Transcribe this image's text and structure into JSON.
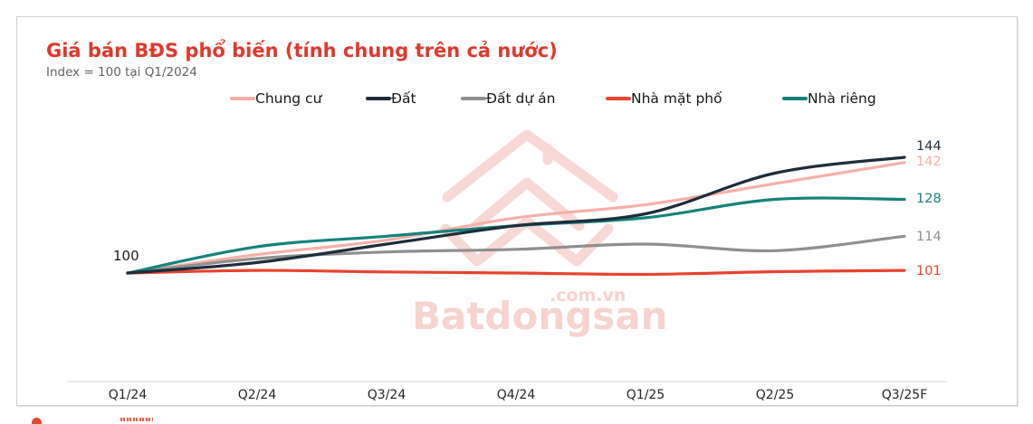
{
  "header": {
    "title": "Giá bán BĐS phổ biến (tính chung trên cả nước)",
    "subtitle": "Index = 100 tại Q1/2024"
  },
  "watermark": {
    "brand": "Batdongsan",
    "domain": ".com.vn"
  },
  "chart_data": {
    "type": "line",
    "title": "Giá bán BĐS phổ biến (tính chung trên cả nước)",
    "subtitle": "Index = 100 tại Q1/2024",
    "categories": [
      "Q1/24",
      "Q2/24",
      "Q3/24",
      "Q4/24",
      "Q1/25",
      "Q2/25",
      "Q3/25F"
    ],
    "series": [
      {
        "name": "Chung cư",
        "color": "#f6b0a8",
        "values": [
          100,
          107,
          112.5,
          121,
          126,
          134,
          142
        ],
        "end_label": "142"
      },
      {
        "name": "Đất",
        "color": "#1e2c3b",
        "values": [
          100,
          104,
          111,
          118,
          122.5,
          138,
          144
        ],
        "end_label": "144"
      },
      {
        "name": "Đất dự án",
        "color": "#8f8f8f",
        "values": [
          100,
          105.5,
          108,
          109,
          111,
          108.5,
          114
        ],
        "end_label": "114"
      },
      {
        "name": "Nhà mặt phố",
        "color": "#e8432f",
        "values": [
          100,
          101,
          100.4,
          100,
          99.5,
          100.5,
          101
        ],
        "end_label": "101"
      },
      {
        "name": "Nhà riêng",
        "color": "#15827d",
        "values": [
          100,
          110,
          114,
          118,
          121,
          128,
          128
        ],
        "end_label": "128"
      }
    ],
    "baseline_label": "100",
    "ylim": [
      96,
      152
    ],
    "grid": false,
    "legend_position": "top",
    "axis_color": "#e3e3e3",
    "watermark_color": "#f8d8d4"
  }
}
